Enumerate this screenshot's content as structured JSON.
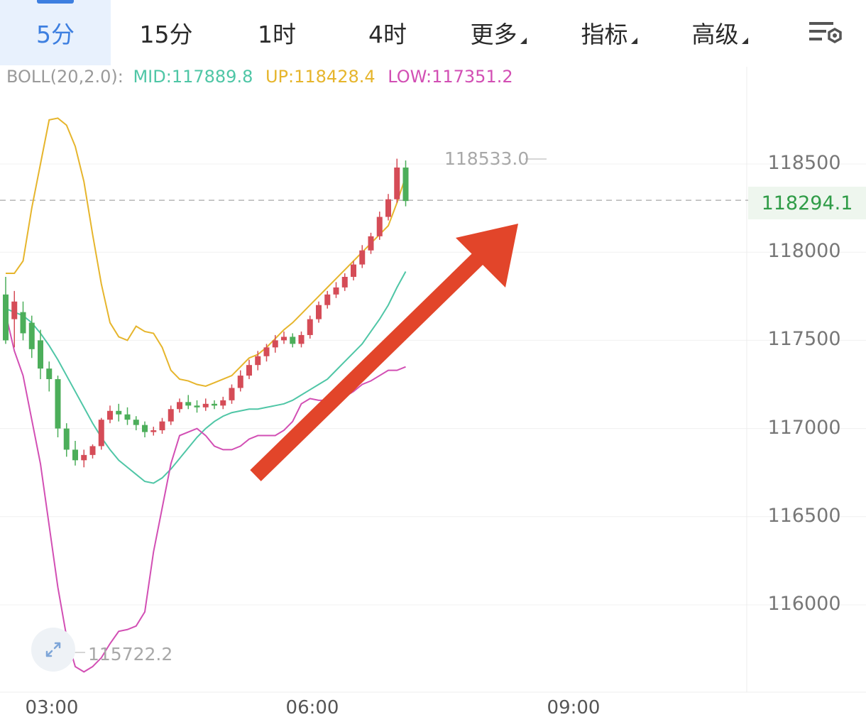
{
  "tabs": [
    {
      "label": "5分",
      "active": true,
      "dropdown": false
    },
    {
      "label": "15分",
      "active": false,
      "dropdown": false
    },
    {
      "label": "1时",
      "active": false,
      "dropdown": false
    },
    {
      "label": "4时",
      "active": false,
      "dropdown": false
    },
    {
      "label": "更多",
      "active": false,
      "dropdown": true
    },
    {
      "label": "指标",
      "active": false,
      "dropdown": true
    },
    {
      "label": "高级",
      "active": false,
      "dropdown": true
    }
  ],
  "settings_icon": "chart-settings-icon",
  "indicator": {
    "label": "BOLL(20,2.0):",
    "mid": "MID:117889.8",
    "up": "UP:118428.4",
    "low": "LOW:117351.2"
  },
  "colors": {
    "accent": "#3d7fe0",
    "up_candle": "#d54c57",
    "down_candle": "#4cae5a",
    "mid_line": "#4fc6a6",
    "upper_band": "#e6b52c",
    "lower_band": "#d24fb4",
    "arrow": "#e2452a"
  },
  "chart_data": {
    "type": "candlestick",
    "y_ticks": [
      "118500",
      "118000",
      "117500",
      "117000",
      "116500",
      "116000"
    ],
    "x_ticks": [
      "03:00",
      "06:00",
      "09:00"
    ],
    "ylim": [
      115600,
      118900
    ],
    "current_price": "118294.1",
    "current_price_value": 118294.1,
    "highest_label": "118533.0",
    "lowest_label": "115722.2",
    "highest_value": 118533.0,
    "lowest_value": 115722.2,
    "grid": true,
    "candles": [
      [
        117760,
        117500,
        117860,
        117480
      ],
      [
        117620,
        117720,
        117780,
        117460
      ],
      [
        117660,
        117540,
        117720,
        117500
      ],
      [
        117600,
        117450,
        117640,
        117400
      ],
      [
        117500,
        117340,
        117560,
        117280
      ],
      [
        117340,
        117280,
        117380,
        117210
      ],
      [
        117280,
        117000,
        117300,
        116950
      ],
      [
        117000,
        116880,
        117030,
        116840
      ],
      [
        116880,
        116820,
        116930,
        116790
      ],
      [
        116820,
        116850,
        116880,
        116780
      ],
      [
        116850,
        116900,
        116910,
        116830
      ],
      [
        116900,
        117050,
        117060,
        116880
      ],
      [
        117050,
        117100,
        117130,
        117030
      ],
      [
        117100,
        117080,
        117140,
        117040
      ],
      [
        117080,
        117050,
        117120,
        117020
      ],
      [
        117050,
        117020,
        117070,
        116990
      ],
      [
        117020,
        116980,
        117040,
        116950
      ],
      [
        116980,
        116990,
        117010,
        116960
      ],
      [
        116990,
        117040,
        117060,
        116970
      ],
      [
        117040,
        117110,
        117130,
        117020
      ],
      [
        117110,
        117150,
        117170,
        117090
      ],
      [
        117150,
        117130,
        117190,
        117110
      ],
      [
        117130,
        117120,
        117160,
        117090
      ],
      [
        117120,
        117140,
        117170,
        117100
      ],
      [
        117140,
        117130,
        117160,
        117110
      ],
      [
        117130,
        117160,
        117180,
        117110
      ],
      [
        117160,
        117230,
        117250,
        117140
      ],
      [
        117230,
        117300,
        117330,
        117210
      ],
      [
        117300,
        117360,
        117390,
        117280
      ],
      [
        117360,
        117410,
        117440,
        117330
      ],
      [
        117410,
        117460,
        117480,
        117380
      ],
      [
        117460,
        117500,
        117530,
        117430
      ],
      [
        117500,
        117520,
        117550,
        117480
      ],
      [
        117520,
        117480,
        117540,
        117460
      ],
      [
        117480,
        117530,
        117550,
        117460
      ],
      [
        117530,
        117620,
        117640,
        117510
      ],
      [
        117620,
        117700,
        117720,
        117600
      ],
      [
        117700,
        117760,
        117780,
        117680
      ],
      [
        117760,
        117800,
        117830,
        117740
      ],
      [
        117800,
        117860,
        117880,
        117780
      ],
      [
        117860,
        117930,
        117950,
        117840
      ],
      [
        117930,
        118010,
        118040,
        117910
      ],
      [
        118010,
        118090,
        118110,
        117990
      ],
      [
        118090,
        118200,
        118230,
        118070
      ],
      [
        118200,
        118300,
        118330,
        118180
      ],
      [
        118300,
        118480,
        118530,
        118280
      ],
      [
        118480,
        118290,
        118520,
        118260
      ]
    ],
    "mid_values": [
      117680,
      117660,
      117640,
      117600,
      117540,
      117470,
      117390,
      117300,
      117210,
      117120,
      117030,
      116950,
      116880,
      116820,
      116780,
      116740,
      116700,
      116690,
      116720,
      116770,
      116830,
      116890,
      116950,
      117000,
      117040,
      117070,
      117090,
      117100,
      117110,
      117110,
      117120,
      117130,
      117140,
      117160,
      117190,
      117220,
      117250,
      117280,
      117330,
      117380,
      117430,
      117480,
      117550,
      117620,
      117700,
      117800,
      117890
    ],
    "upper_values": [
      117880,
      117880,
      117950,
      118250,
      118500,
      118750,
      118760,
      118720,
      118600,
      118400,
      118100,
      117820,
      117600,
      117520,
      117500,
      117580,
      117550,
      117540,
      117460,
      117330,
      117280,
      117270,
      117250,
      117240,
      117260,
      117280,
      117300,
      117350,
      117400,
      117420,
      117460,
      117510,
      117560,
      117600,
      117650,
      117700,
      117750,
      117800,
      117850,
      117900,
      117950,
      118000,
      118050,
      118100,
      118150,
      118280,
      118430
    ],
    "lower_values": [
      117650,
      117440,
      117300,
      117050,
      116800,
      116450,
      116100,
      115820,
      115650,
      115620,
      115650,
      115700,
      115780,
      115850,
      115860,
      115880,
      115960,
      116300,
      116550,
      116800,
      116960,
      116980,
      117000,
      116960,
      116900,
      116880,
      116880,
      116900,
      116940,
      116960,
      116960,
      116960,
      116990,
      117040,
      117140,
      117170,
      117160,
      117160,
      117150,
      117180,
      117210,
      117250,
      117270,
      117300,
      117330,
      117330,
      117350
    ]
  }
}
